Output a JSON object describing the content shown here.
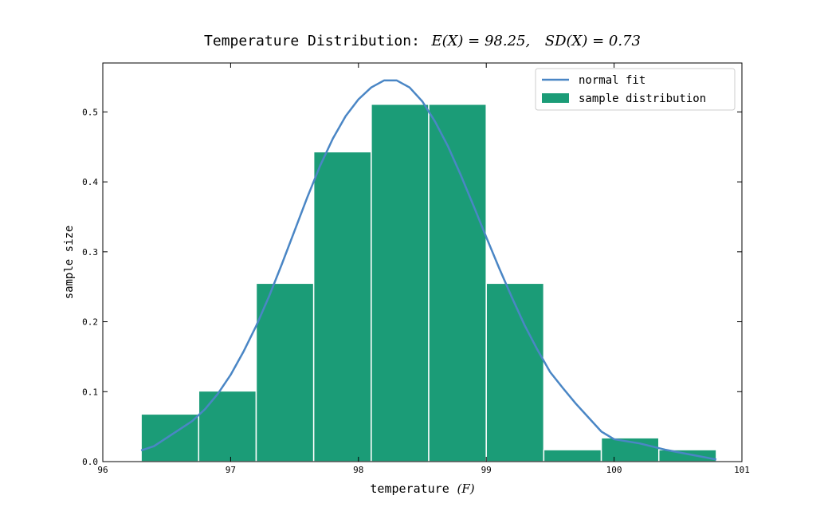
{
  "chart_data": {
    "type": "bar",
    "title_text": "Temperature Distribution:",
    "title_math_1": "E(X) = 98.25,",
    "title_math_2": "SD(X) = 0.73",
    "xlabel_text": "temperature",
    "xlabel_math": "(F)",
    "ylabel": "sample size",
    "xlim": [
      96,
      101
    ],
    "ylim": [
      0,
      0.57
    ],
    "xticks": [
      96,
      97,
      98,
      99,
      100,
      101
    ],
    "yticks": [
      0.0,
      0.1,
      0.2,
      0.3,
      0.4,
      0.5
    ],
    "ytick_labels": [
      "0.0",
      "0.1",
      "0.2",
      "0.3",
      "0.4",
      "0.5"
    ],
    "bins": [
      {
        "x0": 96.3,
        "x1": 96.75,
        "value": 0.068
      },
      {
        "x0": 96.75,
        "x1": 97.2,
        "value": 0.101
      },
      {
        "x0": 97.2,
        "x1": 97.65,
        "value": 0.255
      },
      {
        "x0": 97.65,
        "x1": 98.1,
        "value": 0.443
      },
      {
        "x0": 98.1,
        "x1": 98.55,
        "value": 0.511
      },
      {
        "x0": 98.55,
        "x1": 99.0,
        "value": 0.511
      },
      {
        "x0": 99.0,
        "x1": 99.45,
        "value": 0.255
      },
      {
        "x0": 99.45,
        "x1": 99.9,
        "value": 0.017
      },
      {
        "x0": 99.9,
        "x1": 100.35,
        "value": 0.034
      },
      {
        "x0": 100.35,
        "x1": 100.8,
        "value": 0.017
      }
    ],
    "fit_line": {
      "x": [
        96.3,
        96.4,
        96.5,
        96.6,
        96.7,
        96.8,
        96.9,
        97.0,
        97.1,
        97.2,
        97.3,
        97.4,
        97.5,
        97.6,
        97.7,
        97.8,
        97.9,
        98.0,
        98.1,
        98.2,
        98.3,
        98.4,
        98.5,
        98.6,
        98.7,
        98.8,
        98.9,
        99.0,
        99.1,
        99.2,
        99.3,
        99.4,
        99.5,
        99.6,
        99.7,
        99.8,
        99.9,
        100.0,
        100.2,
        100.4,
        100.6,
        100.8
      ],
      "y": [
        0.016,
        0.022,
        0.034,
        0.046,
        0.058,
        0.075,
        0.097,
        0.124,
        0.157,
        0.194,
        0.236,
        0.282,
        0.33,
        0.378,
        0.423,
        0.462,
        0.494,
        0.518,
        0.535,
        0.545,
        0.545,
        0.535,
        0.515,
        0.486,
        0.451,
        0.41,
        0.366,
        0.321,
        0.277,
        0.235,
        0.195,
        0.16,
        0.128,
        0.105,
        0.083,
        0.063,
        0.043,
        0.032,
        0.026,
        0.017,
        0.01,
        0.003
      ]
    },
    "legend": {
      "position": "top-right",
      "entries": [
        "normal fit",
        "sample distribution"
      ]
    },
    "colors": {
      "bar": "#1b9c77",
      "bar_edge": "#ffffff",
      "line": "#4a86c5",
      "axis": "#000000",
      "legend_border": "#cccccc"
    },
    "grid": false
  }
}
